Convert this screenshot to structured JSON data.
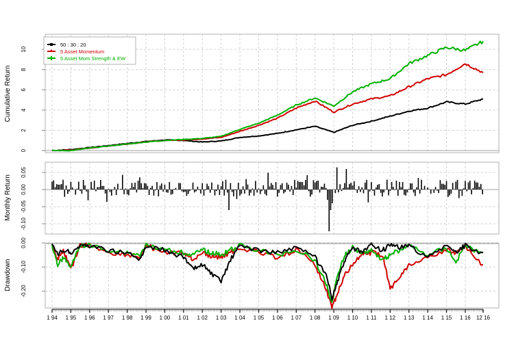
{
  "chart_data": [
    {
      "type": "line",
      "panel": "cumulative",
      "ylabel": "Cumulative Return",
      "xlabel": "",
      "ylim": [
        -0.2,
        11.5
      ],
      "yticks": [
        0,
        2,
        4,
        6,
        8,
        10
      ],
      "grid": true,
      "legend_position": "top-left",
      "x": [
        1994,
        1995,
        1996,
        1997,
        1998,
        1999,
        2000,
        2001,
        2002,
        2003,
        2004,
        2005,
        2006,
        2007,
        2008,
        2009,
        2010,
        2011,
        2012,
        2013,
        2014,
        2015,
        2016,
        2016.95
      ],
      "series": [
        {
          "name": "50 : 30 : 20",
          "color": "#000000",
          "values": [
            0,
            0.1,
            0.3,
            0.5,
            0.7,
            0.9,
            1.05,
            1.0,
            0.85,
            0.95,
            1.3,
            1.45,
            1.7,
            2.05,
            2.4,
            1.8,
            2.5,
            2.9,
            3.4,
            3.9,
            4.2,
            4.8,
            4.6,
            5.1
          ]
        },
        {
          "name": "5 Asset Momentum",
          "color": "#d00000",
          "values": [
            0,
            0.05,
            0.25,
            0.45,
            0.65,
            0.85,
            1.0,
            1.05,
            1.15,
            1.3,
            1.9,
            2.5,
            3.2,
            4.2,
            4.9,
            3.8,
            4.6,
            5.1,
            5.4,
            6.3,
            7.1,
            7.5,
            8.6,
            7.7
          ]
        },
        {
          "name": "5 Asset Mom Strength & EW",
          "color": "#00b000",
          "values": [
            0,
            0.0,
            0.25,
            0.45,
            0.65,
            0.85,
            1.0,
            1.1,
            1.2,
            1.4,
            2.1,
            2.7,
            3.5,
            4.5,
            5.2,
            4.4,
            5.8,
            6.6,
            7.1,
            8.6,
            9.4,
            10.2,
            9.9,
            10.8
          ]
        }
      ]
    },
    {
      "type": "bar",
      "panel": "monthly",
      "ylabel": "Monthly Return",
      "ylim": [
        -0.13,
        0.08
      ],
      "yticks": [
        0.05,
        0.0,
        -0.05,
        -0.1
      ],
      "ytick_labels": [
        "0.05",
        "0.00",
        "-0.05",
        "-0.10"
      ],
      "grid": true,
      "series": [
        {
          "name": "5 Asset Mom Strength & EW",
          "color": "#000000"
        }
      ],
      "notable_values": {
        "max": 0.065,
        "min": -0.122,
        "min_date": "2008-10"
      }
    },
    {
      "type": "line",
      "panel": "drawdown",
      "ylabel": "Drawdown",
      "ylim": [
        -0.27,
        0.0
      ],
      "yticks": [
        0.0,
        -0.1,
        -0.2
      ],
      "ytick_labels": [
        "0.00",
        "-0.10",
        "-0.20"
      ],
      "grid": true,
      "x": [
        1994,
        1994.3,
        1994.6,
        1995,
        1995.5,
        1996,
        1997,
        1998,
        1998.7,
        1999,
        2000,
        2001,
        2001.5,
        2002,
        2002.5,
        2003,
        2003.5,
        2004,
        2005,
        2006,
        2007,
        2008,
        2008.6,
        2008.9,
        2009.2,
        2009.6,
        2010,
        2010.5,
        2011,
        2011.6,
        2012,
        2012.5,
        2013,
        2014,
        2015,
        2015.5,
        2016,
        2016.95
      ],
      "series": [
        {
          "name": "50 : 30 : 20",
          "color": "#000000",
          "values": [
            0,
            -0.04,
            -0.02,
            -0.03,
            0,
            0,
            -0.02,
            -0.03,
            -0.06,
            0,
            -0.02,
            -0.05,
            -0.1,
            -0.08,
            -0.12,
            -0.15,
            -0.06,
            0,
            -0.02,
            -0.03,
            -0.01,
            -0.05,
            -0.13,
            -0.22,
            -0.15,
            -0.06,
            -0.01,
            -0.03,
            0,
            -0.02,
            0,
            -0.01,
            0,
            -0.05,
            0,
            -0.03,
            0,
            -0.04
          ]
        },
        {
          "name": "5 Asset Momentum",
          "color": "#d00000",
          "values": [
            0,
            -0.06,
            -0.02,
            -0.1,
            0,
            0,
            -0.03,
            -0.04,
            -0.05,
            0,
            -0.03,
            -0.03,
            -0.06,
            -0.03,
            -0.05,
            -0.05,
            -0.03,
            -0.01,
            -0.03,
            -0.05,
            -0.02,
            -0.08,
            -0.18,
            -0.26,
            -0.2,
            -0.12,
            -0.08,
            -0.04,
            -0.03,
            -0.04,
            -0.18,
            -0.13,
            -0.08,
            -0.05,
            -0.02,
            -0.03,
            0,
            -0.09
          ]
        },
        {
          "name": "5 Asset Mom Strength & EW",
          "color": "#00b000",
          "values": [
            0,
            -0.08,
            -0.05,
            -0.09,
            0,
            0,
            -0.02,
            -0.03,
            -0.04,
            0,
            -0.02,
            -0.03,
            -0.04,
            -0.02,
            -0.03,
            -0.04,
            -0.02,
            0,
            -0.02,
            -0.04,
            -0.02,
            -0.06,
            -0.16,
            -0.24,
            -0.12,
            -0.04,
            -0.01,
            -0.03,
            -0.02,
            -0.06,
            -0.04,
            -0.02,
            0,
            -0.04,
            -0.01,
            -0.07,
            0,
            -0.04
          ]
        }
      ]
    }
  ],
  "legend": {
    "items": [
      {
        "label": "50 : 30 : 20",
        "color": "#000000"
      },
      {
        "label": "5 Asset Momentum",
        "color": "#d00000"
      },
      {
        "label": "5 Asset Mom Strength & EW",
        "color": "#00b000"
      }
    ]
  },
  "axes": {
    "cumulative_ylabel": "Cumulative Return",
    "monthly_ylabel": "Monthly Return",
    "drawdown_ylabel": "Drawdown",
    "cumulative_yticks": [
      "0",
      "2",
      "4",
      "6",
      "8",
      "10"
    ],
    "monthly_yticks": [
      "0.05",
      "0.00",
      "-0.05",
      "-0.10"
    ],
    "drawdown_yticks": [
      "0.00",
      "-0.10",
      "-0.20"
    ],
    "xticks": [
      "1 94",
      "1 95",
      "1 96",
      "1 97",
      "1 98",
      "1 99",
      "1 00",
      "1 01",
      "1 02",
      "1 03",
      "1 04",
      "1 05",
      "1 06",
      "1 07",
      "1 08",
      "1 09",
      "1 10",
      "1 11",
      "1 12",
      "1 13",
      "1 14",
      "1 15",
      "1 16",
      "12 16"
    ]
  },
  "colors": {
    "black_series": "#000000",
    "red_series": "#d00000",
    "green_series": "#00b000",
    "frame": "#b0b0b0",
    "grid": "#cfcfcf"
  }
}
